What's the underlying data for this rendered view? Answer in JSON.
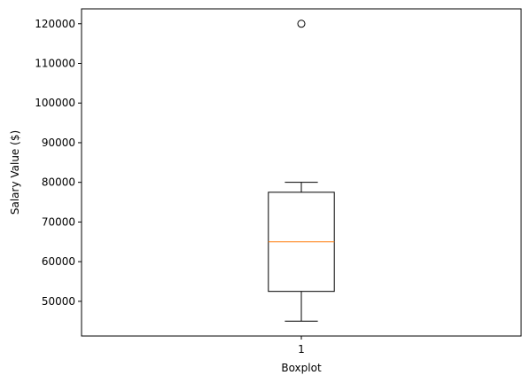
{
  "chart_data": {
    "type": "boxplot",
    "title": "",
    "xlabel": "Boxplot",
    "ylabel": "Salary Value ($)",
    "categories": [
      "1"
    ],
    "boxes": [
      {
        "category": "1",
        "whisker_low": 45000,
        "q1": 52500,
        "median": 65000,
        "q3": 77500,
        "whisker_high": 80000,
        "outliers": [
          120000
        ]
      }
    ],
    "ylim": [
      41250,
      123750
    ],
    "y_ticks": [
      50000,
      60000,
      70000,
      80000,
      90000,
      100000,
      110000,
      120000
    ],
    "y_tick_labels": [
      "50000",
      "60000",
      "70000",
      "80000",
      "90000",
      "100000",
      "110000",
      "120000"
    ],
    "x_range": [
      0.5,
      1.5
    ],
    "grid": false,
    "legend": "none",
    "colors": {
      "box": "#000000",
      "median": "#ff7f0e",
      "outlier": "#000000"
    }
  }
}
